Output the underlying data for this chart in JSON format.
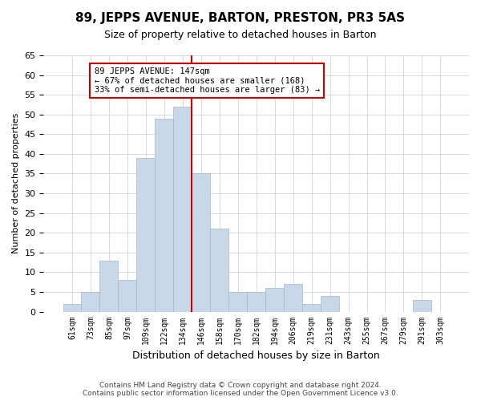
{
  "title": "89, JEPPS AVENUE, BARTON, PRESTON, PR3 5AS",
  "subtitle": "Size of property relative to detached houses in Barton",
  "xlabel": "Distribution of detached houses by size in Barton",
  "ylabel": "Number of detached properties",
  "bin_labels": [
    "61sqm",
    "73sqm",
    "85sqm",
    "97sqm",
    "109sqm",
    "122sqm",
    "134sqm",
    "146sqm",
    "158sqm",
    "170sqm",
    "182sqm",
    "194sqm",
    "206sqm",
    "219sqm",
    "231sqm",
    "243sqm",
    "255sqm",
    "267sqm",
    "279sqm",
    "291sqm",
    "303sqm"
  ],
  "bar_values": [
    2,
    5,
    13,
    8,
    39,
    49,
    52,
    35,
    21,
    5,
    5,
    6,
    7,
    2,
    4,
    0,
    0,
    0,
    0,
    3,
    0
  ],
  "bar_color": "#c8d8e8",
  "bar_edge_color": "#a0b8cc",
  "ylim": [
    0,
    65
  ],
  "yticks": [
    0,
    5,
    10,
    15,
    20,
    25,
    30,
    35,
    40,
    45,
    50,
    55,
    60,
    65
  ],
  "property_line_bin_index": 7,
  "property_line_color": "#cc0000",
  "annotation_text_line1": "89 JEPPS AVENUE: 147sqm",
  "annotation_text_line2": "← 67% of detached houses are smaller (168)",
  "annotation_text_line3": "33% of semi-detached houses are larger (83) →",
  "annotation_box_color": "#ffffff",
  "annotation_box_edge_color": "#cc0000",
  "footer_line1": "Contains HM Land Registry data © Crown copyright and database right 2024.",
  "footer_line2": "Contains public sector information licensed under the Open Government Licence v3.0.",
  "background_color": "#ffffff",
  "grid_color": "#cccccc"
}
